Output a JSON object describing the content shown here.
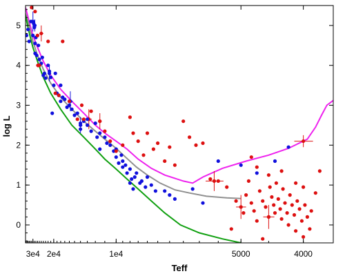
{
  "chart_data": {
    "type": "scatter",
    "title": "",
    "xlabel": "Teff",
    "ylabel": "log L",
    "x_reversed": true,
    "x_scale": "reciprocal",
    "xlim": [
      36500,
      3650
    ],
    "ylim": [
      -0.45,
      5.5
    ],
    "x_ticks": [
      {
        "value": 30000,
        "label": "3e4"
      },
      {
        "value": 20000,
        "label": "2e4"
      },
      {
        "value": 10000,
        "label": "1e4"
      },
      {
        "value": 5000,
        "label": "5000"
      },
      {
        "value": 4000,
        "label": "4000"
      }
    ],
    "y_ticks": [
      0,
      1,
      2,
      3,
      4,
      5
    ],
    "grid": false,
    "legend": "none",
    "colors": {
      "blue_points": "#1010dd",
      "red_points": "#dd1010",
      "magenta_curve": "#ee22ee",
      "gray_curve": "#909090",
      "green_curve": "#10a010",
      "axis": "#000000"
    },
    "curves": [
      {
        "color_key": "magenta_curve",
        "points": [
          [
            36500,
            5.45
          ],
          [
            33000,
            5.1
          ],
          [
            30000,
            4.75
          ],
          [
            27000,
            4.45
          ],
          [
            24000,
            4.1
          ],
          [
            21000,
            3.75
          ],
          [
            18000,
            3.4
          ],
          [
            15500,
            3.1
          ],
          [
            13500,
            2.8
          ],
          [
            12000,
            2.5
          ],
          [
            11000,
            2.3
          ],
          [
            10000,
            2.1
          ],
          [
            9200,
            1.9
          ],
          [
            8500,
            1.65
          ],
          [
            7800,
            1.42
          ],
          [
            7200,
            1.25
          ],
          [
            6500,
            1.1
          ],
          [
            6200,
            1.05
          ],
          [
            5900,
            1.2
          ],
          [
            5400,
            1.42
          ],
          [
            4900,
            1.6
          ],
          [
            4500,
            1.75
          ],
          [
            4200,
            1.92
          ],
          [
            3950,
            2.15
          ],
          [
            3850,
            2.45
          ],
          [
            3780,
            2.75
          ],
          [
            3720,
            3.0
          ],
          [
            3650,
            3.12
          ]
        ]
      },
      {
        "color_key": "gray_curve",
        "points": [
          [
            36500,
            5.3
          ],
          [
            33000,
            5.0
          ],
          [
            30000,
            4.6
          ],
          [
            27000,
            4.25
          ],
          [
            24000,
            3.9
          ],
          [
            21000,
            3.55
          ],
          [
            18000,
            3.2
          ],
          [
            15500,
            2.9
          ],
          [
            13500,
            2.6
          ],
          [
            12000,
            2.35
          ],
          [
            11000,
            2.15
          ],
          [
            10000,
            1.92
          ],
          [
            9300,
            1.7
          ],
          [
            8600,
            1.45
          ],
          [
            8000,
            1.25
          ],
          [
            7400,
            1.05
          ],
          [
            6800,
            0.88
          ],
          [
            6300,
            0.8
          ],
          [
            5800,
            0.72
          ],
          [
            5300,
            0.68
          ],
          [
            5000,
            0.66
          ]
        ]
      },
      {
        "color_key": "green_curve",
        "points": [
          [
            36500,
            5.25
          ],
          [
            34000,
            4.95
          ],
          [
            32000,
            4.7
          ],
          [
            30000,
            4.45
          ],
          [
            27000,
            4.1
          ],
          [
            24000,
            3.7
          ],
          [
            21000,
            3.3
          ],
          [
            18000,
            2.9
          ],
          [
            15500,
            2.5
          ],
          [
            13500,
            2.2
          ],
          [
            12000,
            1.9
          ],
          [
            11000,
            1.65
          ],
          [
            10000,
            1.4
          ],
          [
            9200,
            1.15
          ],
          [
            8500,
            0.9
          ],
          [
            7800,
            0.6
          ],
          [
            7200,
            0.3
          ],
          [
            6600,
            0.0
          ],
          [
            6000,
            -0.2
          ],
          [
            5400,
            -0.35
          ],
          [
            5000,
            -0.45
          ]
        ]
      }
    ],
    "series": [
      {
        "color_key": "blue_points",
        "points": [
          [
            35500,
            4.75
          ],
          [
            34000,
            4.9
          ],
          [
            33000,
            4.6
          ],
          [
            31500,
            5.1
          ],
          [
            30000,
            4.75
          ],
          [
            29500,
            5.05
          ],
          [
            29000,
            4.95
          ],
          [
            28500,
            4.55
          ],
          [
            28000,
            4.7
          ],
          [
            28500,
            4.3
          ],
          [
            27500,
            4.25
          ],
          [
            26500,
            4.5
          ],
          [
            26000,
            4.15
          ],
          [
            25000,
            4.05
          ],
          [
            24500,
            4.2
          ],
          [
            24000,
            3.75
          ],
          [
            23500,
            3.8
          ],
          [
            23000,
            3.68
          ],
          [
            22000,
            4.0
          ],
          [
            21500,
            3.85
          ],
          [
            21000,
            3.7
          ],
          [
            20000,
            3.5
          ],
          [
            19500,
            3.8
          ],
          [
            19000,
            3.3
          ],
          [
            18500,
            3.25
          ],
          [
            18000,
            3.1
          ],
          [
            17500,
            3.2
          ],
          [
            17000,
            3.15
          ],
          [
            16500,
            2.95
          ],
          [
            16000,
            3.1
          ],
          [
            15500,
            2.9
          ],
          [
            15000,
            2.75
          ],
          [
            14500,
            2.8
          ],
          [
            14000,
            2.55
          ],
          [
            13500,
            2.6
          ],
          [
            13000,
            2.5
          ],
          [
            12500,
            2.35
          ],
          [
            12000,
            2.55
          ],
          [
            11800,
            2.2
          ],
          [
            11500,
            2.3
          ],
          [
            11000,
            2.2
          ],
          [
            10800,
            2.05
          ],
          [
            10500,
            2.0
          ],
          [
            10200,
            1.85
          ],
          [
            10000,
            1.9
          ],
          [
            9800,
            1.55
          ],
          [
            9600,
            1.75
          ],
          [
            9500,
            1.6
          ],
          [
            9300,
            1.5
          ],
          [
            9200,
            1.3
          ],
          [
            9000,
            1.4
          ],
          [
            8900,
            1.15
          ],
          [
            8700,
            1.2
          ],
          [
            8600,
            1.3
          ],
          [
            8400,
            1.05
          ],
          [
            8300,
            1.1
          ],
          [
            8100,
            0.95
          ],
          [
            8000,
            1.2
          ],
          [
            7800,
            1.0
          ],
          [
            7600,
            0.85
          ],
          [
            7200,
            0.85
          ],
          [
            7000,
            0.75
          ],
          [
            6800,
            0.65
          ],
          [
            6200,
            0.9
          ],
          [
            5900,
            0.55
          ],
          [
            5500,
            1.6
          ],
          [
            5000,
            1.5
          ],
          [
            4700,
            1.3
          ],
          [
            4400,
            1.6
          ],
          [
            4200,
            1.95
          ],
          [
            20500,
            2.8
          ],
          [
            18000,
            3.5
          ],
          [
            16000,
            3.0
          ],
          [
            14000,
            2.4
          ],
          [
            13000,
            2.65
          ],
          [
            11500,
            1.9
          ],
          [
            10000,
            1.7
          ],
          [
            9500,
            1.45
          ],
          [
            9000,
            1.05
          ],
          [
            8800,
            0.9
          ]
        ]
      },
      {
        "color_key": "red_points",
        "points": [
          [
            31000,
            5.45
          ],
          [
            28500,
            5.35
          ],
          [
            27000,
            4.75
          ],
          [
            26000,
            4.0
          ],
          [
            22000,
            4.6
          ],
          [
            19500,
            3.3
          ],
          [
            18500,
            3.25
          ],
          [
            17500,
            4.6
          ],
          [
            16000,
            3.1
          ],
          [
            14500,
            2.65
          ],
          [
            13800,
            3.0
          ],
          [
            13500,
            2.65
          ],
          [
            12500,
            2.85
          ],
          [
            11500,
            2.6
          ],
          [
            11000,
            2.35
          ],
          [
            10500,
            2.1
          ],
          [
            10000,
            1.85
          ],
          [
            9500,
            2.0
          ],
          [
            9000,
            2.7
          ],
          [
            8800,
            2.3
          ],
          [
            8500,
            2.1
          ],
          [
            8200,
            1.75
          ],
          [
            8000,
            2.3
          ],
          [
            7700,
            1.9
          ],
          [
            7500,
            2.05
          ],
          [
            7200,
            1.6
          ],
          [
            7000,
            1.95
          ],
          [
            6800,
            1.5
          ],
          [
            6500,
            2.6
          ],
          [
            6300,
            2.2
          ],
          [
            6100,
            2.0
          ],
          [
            5900,
            2.05
          ],
          [
            5700,
            1.15
          ],
          [
            5500,
            1.1
          ],
          [
            5300,
            0.95
          ],
          [
            5100,
            0.6
          ],
          [
            5000,
            0.45
          ],
          [
            4950,
            0.3
          ],
          [
            4900,
            0.75
          ],
          [
            4850,
            1.1
          ],
          [
            4800,
            0.55
          ],
          [
            4750,
            0.35
          ],
          [
            4700,
            0.1
          ],
          [
            4650,
            0.85
          ],
          [
            4600,
            0.6
          ],
          [
            4550,
            0.45
          ],
          [
            4500,
            0.2
          ],
          [
            4480,
            0.95
          ],
          [
            4450,
            0.7
          ],
          [
            4420,
            0.5
          ],
          [
            4400,
            0.3
          ],
          [
            4380,
            1.05
          ],
          [
            4350,
            0.65
          ],
          [
            4320,
            0.4
          ],
          [
            4300,
            0.15
          ],
          [
            4280,
            0.9
          ],
          [
            4250,
            0.55
          ],
          [
            4220,
            0.3
          ],
          [
            4200,
            0.0
          ],
          [
            4180,
            0.75
          ],
          [
            4150,
            0.5
          ],
          [
            4120,
            0.25
          ],
          [
            4100,
            -0.15
          ],
          [
            4080,
            0.6
          ],
          [
            4050,
            0.4
          ],
          [
            4020,
            0.1
          ],
          [
            4000,
            -0.3
          ],
          [
            3980,
            0.5
          ],
          [
            3950,
            0.2
          ],
          [
            3920,
            -0.1
          ],
          [
            3900,
            0.35
          ],
          [
            4700,
            1.45
          ],
          [
            4500,
            1.25
          ],
          [
            4300,
            1.35
          ],
          [
            4000,
            0.95
          ],
          [
            3850,
            0.8
          ],
          [
            3800,
            1.35
          ],
          [
            4800,
            1.7
          ],
          [
            4100,
            1.05
          ],
          [
            5200,
            -0.1
          ],
          [
            4600,
            -0.35
          ]
        ]
      }
    ],
    "error_bar_points": [
      {
        "color_key": "blue_points",
        "x": 30000,
        "y": 5.1,
        "xerr": 0.018,
        "yerr": 0.25
      },
      {
        "color_key": "blue_points",
        "x": 28700,
        "y": 5.0,
        "xerr": 0.015,
        "yerr": 0.15
      },
      {
        "color_key": "blue_points",
        "x": 21500,
        "y": 3.8,
        "xerr": 0.012,
        "yerr": 0.2
      },
      {
        "color_key": "blue_points",
        "x": 15800,
        "y": 3.1,
        "xerr": 0.03,
        "yerr": 0.25
      },
      {
        "color_key": "blue_points",
        "x": 14000,
        "y": 2.5,
        "xerr": 0.02,
        "yerr": 0.2
      },
      {
        "color_key": "red_points",
        "x": 25000,
        "y": 4.8,
        "xerr": 0.04,
        "yerr": 0.2
      },
      {
        "color_key": "red_points",
        "x": 26800,
        "y": 4.0,
        "xerr": 0.01,
        "yerr": 0.05
      },
      {
        "color_key": "red_points",
        "x": 12800,
        "y": 2.65,
        "xerr": 0.03,
        "yerr": 0.25
      },
      {
        "color_key": "red_points",
        "x": 11500,
        "y": 2.6,
        "xerr": 0.01,
        "yerr": 0.2
      },
      {
        "color_key": "red_points",
        "x": 5600,
        "y": 1.1,
        "xerr": 0.04,
        "yerr": 0.25
      },
      {
        "color_key": "red_points",
        "x": 5000,
        "y": 0.45,
        "xerr": 0.02,
        "yerr": 0.3
      },
      {
        "color_key": "red_points",
        "x": 4500,
        "y": 0.2,
        "xerr": 0.02,
        "yerr": 0.3
      },
      {
        "color_key": "red_points",
        "x": 4000,
        "y": 2.1,
        "xerr": 0.03,
        "yerr": 0.15
      }
    ]
  }
}
